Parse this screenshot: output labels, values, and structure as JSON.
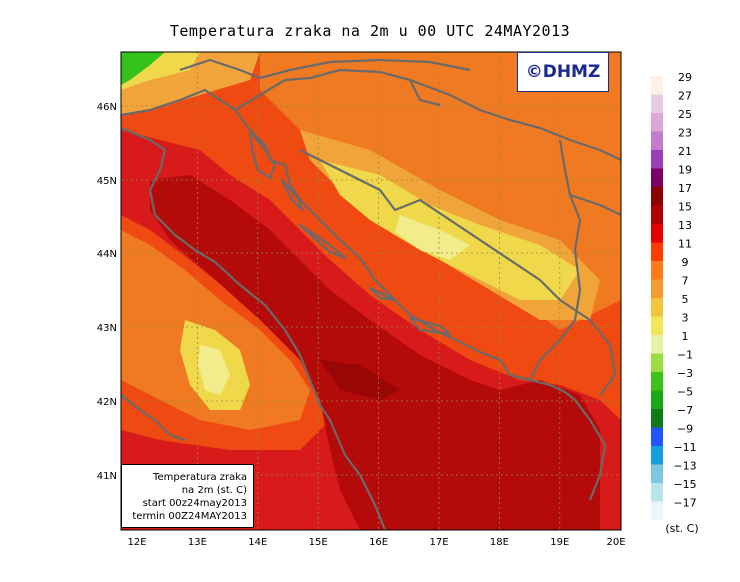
{
  "title": "Temperatura zraka na 2m u 00 UTC 24MAY2013",
  "copyright": "©DHMZ",
  "info_box": {
    "line1": "Temperatura zraka",
    "line2": "na 2m (st. C)",
    "line3": "start 00z24may2013",
    "line4": "termin 00Z24MAY2013"
  },
  "lat_ticks": [
    "46N",
    "45N",
    "44N",
    "43N",
    "42N",
    "41N"
  ],
  "lon_ticks": [
    "12E",
    "13E",
    "14E",
    "15E",
    "16E",
    "17E",
    "18E",
    "19E",
    "20E"
  ],
  "colorbar": {
    "unit": "(st. C)",
    "levels": [
      29,
      27,
      25,
      23,
      21,
      19,
      17,
      15,
      13,
      11,
      9,
      7,
      5,
      3,
      1,
      -1,
      -3,
      -5,
      -7,
      -9,
      -11,
      -13,
      -15,
      -17
    ],
    "colors": [
      "#fff0e6",
      "#e6cce0",
      "#dca6d6",
      "#c37ccc",
      "#9a3fb3",
      "#7a0063",
      "#8b0000",
      "#b30000",
      "#e60000",
      "#ff3c00",
      "#ff7a1a",
      "#f29c33",
      "#f2c63c",
      "#f2e65a",
      "#e8f2a6",
      "#9bde3f",
      "#3cc21b",
      "#18a818",
      "#0e7a14",
      "#2255ff",
      "#159fe0",
      "#7fc7de",
      "#b8e4ec",
      "#e8f8fa"
    ]
  },
  "palette": {
    "sea_dark": "#b50a0a",
    "sea_mid": "#d81a1a",
    "warm": "#ef4a12",
    "orange": "#f07a22",
    "light_orange": "#f0a43a",
    "yellow": "#efd84a",
    "pale_yellow": "#f2ec8c",
    "green": "#34c21b",
    "coast": "#6a6a6a",
    "grid": "#9a8a40"
  }
}
